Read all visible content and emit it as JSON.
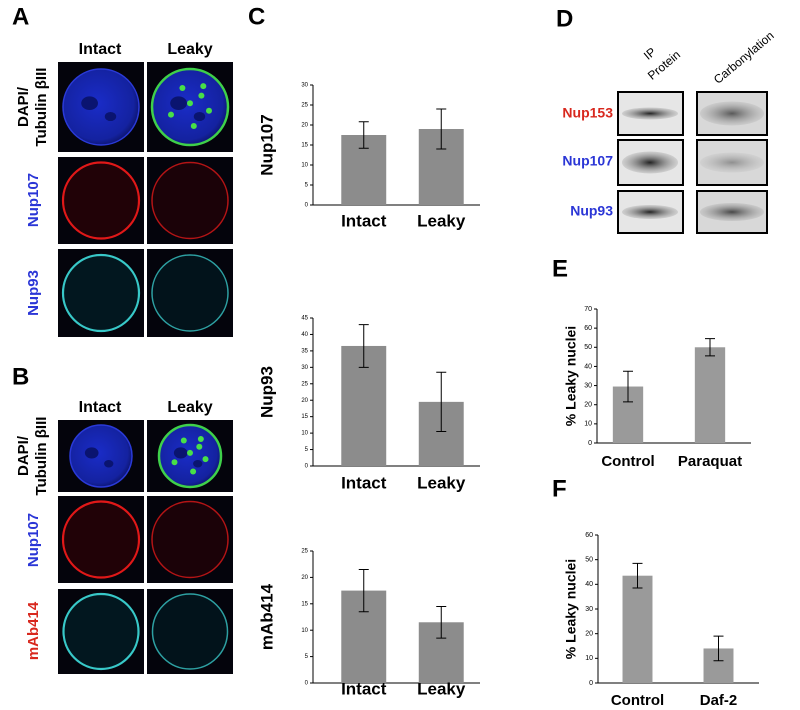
{
  "panel_labels": [
    "A",
    "B",
    "C",
    "D",
    "E",
    "F"
  ],
  "panel_a": {
    "columns": [
      "Intact",
      "Leaky"
    ],
    "rows": [
      [
        "DAPI/",
        "Tubulin βIII"
      ],
      [
        "Nup107"
      ],
      [
        "Nup93"
      ]
    ]
  },
  "panel_b": {
    "columns": [
      "Intact",
      "Leaky"
    ],
    "rows": [
      [
        "DAPI/",
        "Tubulin βIII"
      ],
      [
        "Nup107"
      ],
      [
        "mAb414"
      ]
    ]
  },
  "panel_d": {
    "columns": [
      [
        "IP",
        "Protein"
      ],
      [
        "Carbonylation"
      ]
    ],
    "rows": [
      "Nup153",
      "Nup107",
      "Nup93"
    ]
  },
  "chart_data": [
    {
      "type": "bar",
      "y_label": "Nup107",
      "categories": [
        "Intact",
        "Leaky"
      ],
      "values": [
        17.5,
        19
      ],
      "errors": [
        3.3,
        5
      ],
      "color": "#8c8c8c",
      "ylim": [
        0,
        30
      ],
      "yticks": [
        0,
        5,
        10,
        15,
        20,
        25,
        30
      ]
    },
    {
      "type": "bar",
      "y_label": "Nup93",
      "categories": [
        "Intact",
        "Leaky"
      ],
      "values": [
        36.5,
        19.5
      ],
      "errors": [
        6.5,
        9
      ],
      "color": "#8c8c8c",
      "ylim": [
        0,
        45
      ],
      "yticks": [
        0,
        5,
        10,
        15,
        20,
        25,
        30,
        35,
        40,
        45
      ]
    },
    {
      "type": "bar",
      "y_label": "mAb414",
      "categories": [
        "Intact",
        "Leaky"
      ],
      "values": [
        17.5,
        11.5
      ],
      "errors": [
        4,
        3
      ],
      "color": "#8c8c8c",
      "ylim": [
        0,
        25
      ],
      "yticks": [
        0,
        5,
        10,
        15,
        20,
        25
      ]
    },
    {
      "type": "bar",
      "y_label": "% Leaky nuclei",
      "categories": [
        "Control",
        "Paraquat"
      ],
      "values": [
        29.5,
        50
      ],
      "errors": [
        8,
        4.5
      ],
      "color": "#9a9a9a",
      "ylim": [
        0,
        70
      ],
      "yticks": [
        0,
        10,
        20,
        30,
        40,
        50,
        60,
        70
      ]
    },
    {
      "type": "bar",
      "y_label": "% Leaky nuclei",
      "categories": [
        "Control",
        "Daf-2"
      ],
      "values": [
        43.5,
        14
      ],
      "errors": [
        5,
        5
      ],
      "color": "#9a9a9a",
      "ylim": [
        0,
        60
      ],
      "yticks": [
        0,
        10,
        20,
        30,
        40,
        50,
        60
      ]
    }
  ]
}
